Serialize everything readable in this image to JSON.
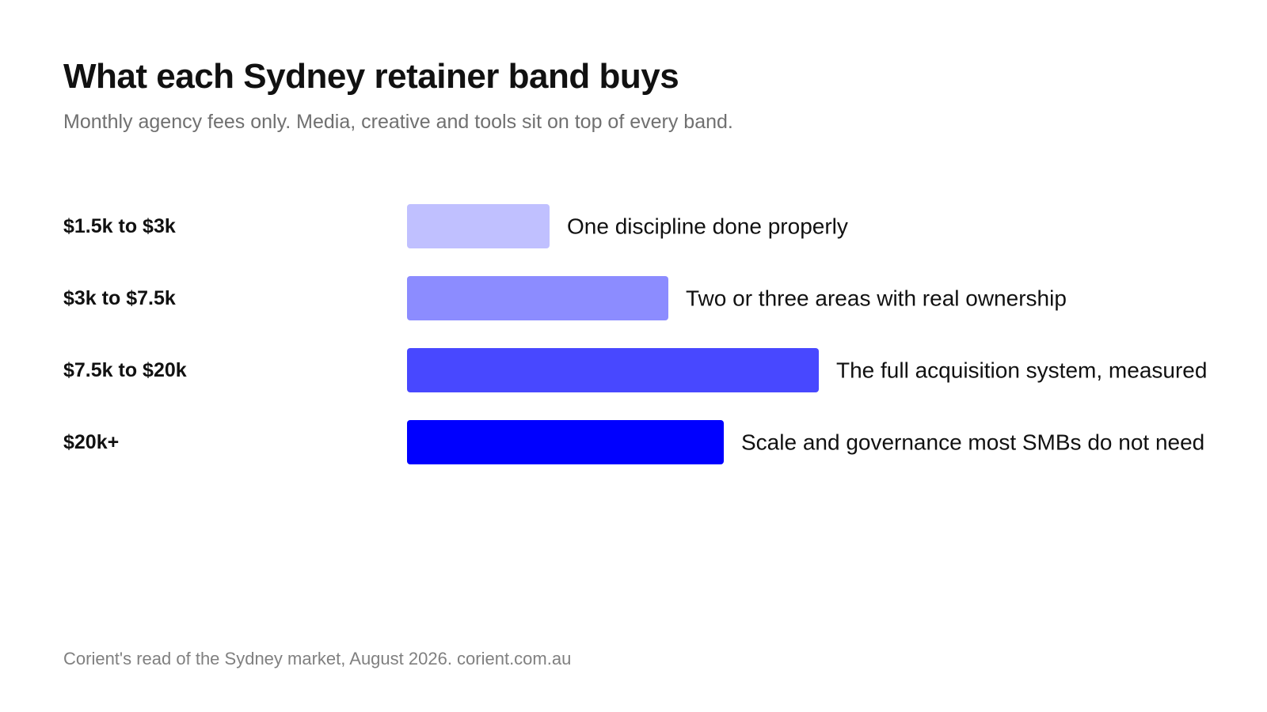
{
  "header": {
    "title": "What each Sydney retainer band buys",
    "subtitle": "Monthly agency fees only. Media, creative and tools sit on top of every band."
  },
  "footer": {
    "source": "Corient's read of the Sydney market, August 2026. corient.com.au"
  },
  "chart_data": {
    "type": "bar",
    "orientation": "horizontal",
    "title": "What each Sydney retainer band buys",
    "subtitle": "Monthly agency fees only. Media, creative and tools sit on top of every band.",
    "categories": [
      "$1.5k to $3k",
      "$3k to $7.5k",
      "$7.5k to $20k",
      "$20k+"
    ],
    "values": [
      1.8,
      3.3,
      5.2,
      4.0
    ],
    "annotations": [
      "One discipline done properly",
      "Two or three areas with real ownership",
      "The full acquisition system, measured",
      "Scale and governance most SMBs do not need"
    ],
    "colors": [
      "#c0c0ff",
      "#8c8cff",
      "#4848ff",
      "#0000ff"
    ],
    "xlim": [
      0,
      5.2
    ],
    "axes_visible": false,
    "grid": false,
    "legend": "none"
  }
}
